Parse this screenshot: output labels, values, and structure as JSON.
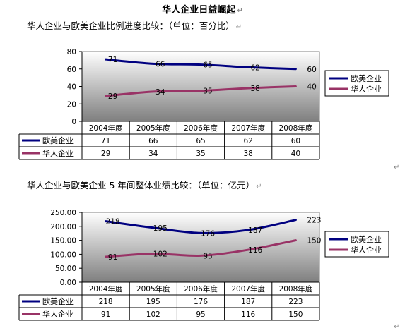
{
  "page": {
    "title": "华人企业日益崛起",
    "subtitle1": "华人企业与欧美企业比例进度比较：（单位：百分比）",
    "subtitle2": "华人企业与欧美企业 5 年间整体业绩比较：（单位：亿元）",
    "para_mark": "↵"
  },
  "colors": {
    "series_euro": "#000080",
    "series_chinese": "#993366",
    "plot_grad_top": "#ffffff",
    "plot_grad_bottom": "#7f7f7f"
  },
  "chart_data": [
    {
      "type": "line",
      "categories": [
        "2004年度",
        "2005年度",
        "2006年度",
        "2007年度",
        "2008年度"
      ],
      "series": [
        {
          "name": "欧美企业",
          "values": [
            71,
            66,
            65,
            62,
            60
          ]
        },
        {
          "name": "华人企业",
          "values": [
            29,
            34,
            35,
            38,
            40
          ]
        }
      ],
      "ylim": [
        0,
        80
      ],
      "yticks": [
        "0",
        "20",
        "40",
        "60",
        "80"
      ],
      "ytick_values": [
        0,
        20,
        40,
        60,
        80
      ],
      "legend_position": "right",
      "data_table": true,
      "grid": false
    },
    {
      "type": "line",
      "categories": [
        "2004年度",
        "2005年度",
        "2006年度",
        "2007年度",
        "2008年度"
      ],
      "series": [
        {
          "name": "欧美企业",
          "values": [
            218,
            195,
            176,
            187,
            223
          ]
        },
        {
          "name": "华人企业",
          "values": [
            91,
            102,
            95,
            116,
            150
          ]
        }
      ],
      "ylim": [
        0,
        250
      ],
      "yticks": [
        "0.00",
        "50.00",
        "100.00",
        "150.00",
        "200.00",
        "250.00"
      ],
      "ytick_values": [
        0,
        50,
        100,
        150,
        200,
        250
      ],
      "legend_position": "right",
      "data_table": true,
      "grid": false
    }
  ]
}
